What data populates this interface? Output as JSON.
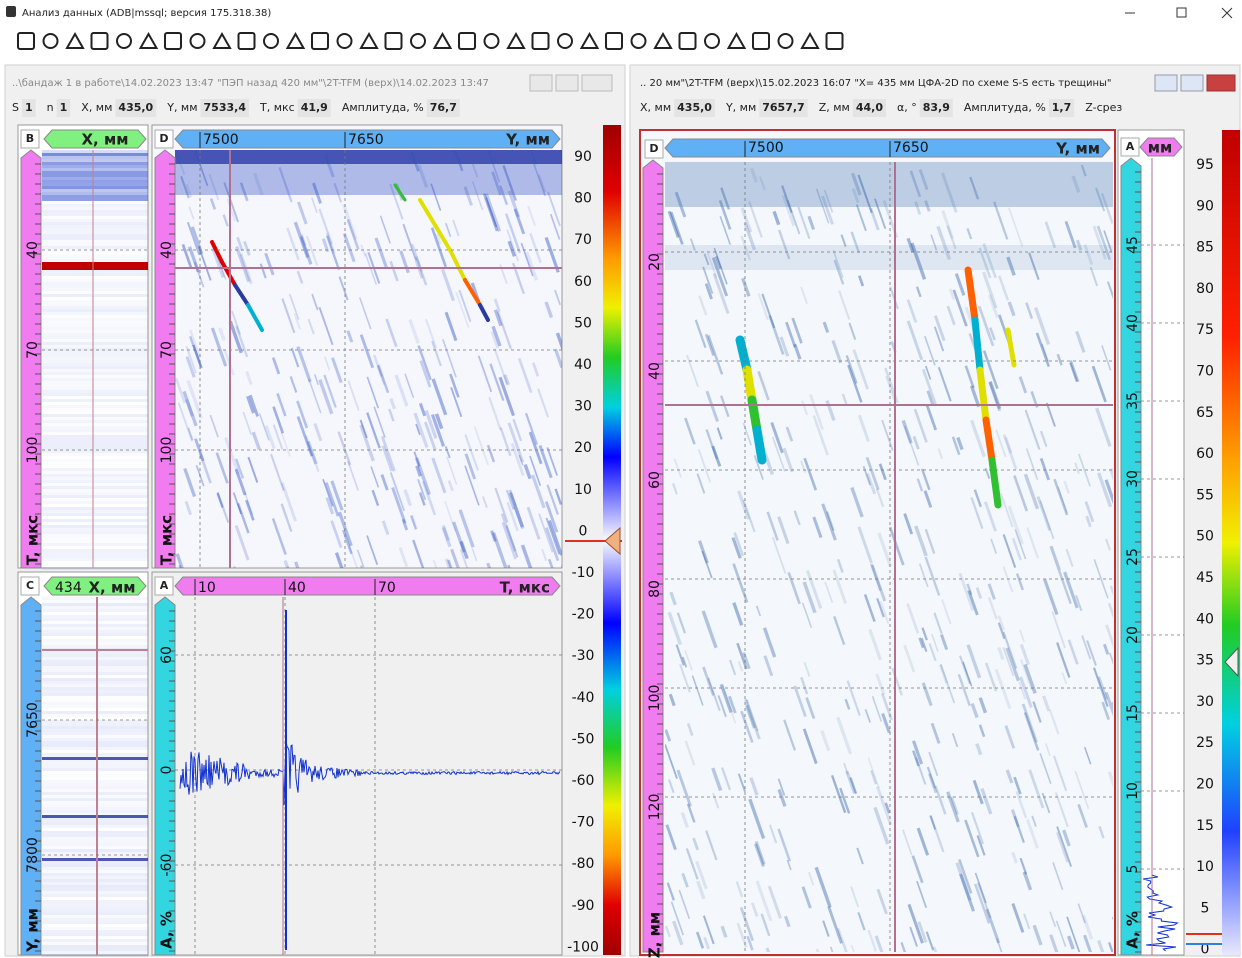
{
  "window": {
    "title": "Анализ данных (ADB|mssql; версия 175.318.38)"
  },
  "left_panel": {
    "title": "..\\бандаж 1 в работе\\14.02.2023 13:47 \"ПЭП назад 420 мм\"\\2T-TFM (верх)\\14.02.2023 13:47",
    "status": [
      {
        "label": "S",
        "value": "1"
      },
      {
        "label": "n",
        "value": "1"
      },
      {
        "label": "X, мм",
        "value": "435,0"
      },
      {
        "label": "Y, мм",
        "value": "7533,4"
      },
      {
        "label": "T, мкс",
        "value": "41,9"
      },
      {
        "label": "Амплитуда, %",
        "value": "76,7"
      }
    ],
    "b_view": {
      "letter": "B",
      "header": "X, мм",
      "axis_label": "T, мкс",
      "ticks": [
        "40",
        "70",
        "100"
      ]
    },
    "d_view": {
      "letter": "D",
      "top_ticks": [
        "7500",
        "7650"
      ],
      "top_label": "Y, мм",
      "axis_label": "T, мкс",
      "ticks": [
        "40",
        "70",
        "100"
      ]
    },
    "c_view": {
      "letter": "C",
      "header_value": "434",
      "header": "X, мм",
      "axis_label": "Y, мм",
      "ticks": [
        "7650",
        "7800"
      ]
    },
    "a_view": {
      "letter": "A",
      "top_ticks": [
        "10",
        "40",
        "70"
      ],
      "top_label": "T, мкс",
      "axis_label": "A, %",
      "ticks": [
        "60",
        "0",
        "-60"
      ]
    },
    "scale_ticks": [
      "90",
      "80",
      "70",
      "60",
      "50",
      "40",
      "30",
      "20",
      "10",
      "0",
      "-10",
      "-20",
      "-30",
      "-40",
      "-50",
      "-60",
      "-70",
      "-80",
      "-90",
      "-100"
    ]
  },
  "right_panel": {
    "title": ".. 20 мм\"\\2T-TFM (верх)\\15.02.2023 16:07 \"X= 435 мм ЦФА-2D по схеме S-S есть трещины\"",
    "status": [
      {
        "label": "X, мм",
        "value": "435,0"
      },
      {
        "label": "Y, мм",
        "value": "7657,7"
      },
      {
        "label": "Z, мм",
        "value": "44,0"
      },
      {
        "label": "α, °",
        "value": "83,9"
      },
      {
        "label": "Амплитуда, %",
        "value": "1,7"
      },
      {
        "label": "Z-срез"
      }
    ],
    "d_view": {
      "letter": "D",
      "top_ticks": [
        "7500",
        "7650"
      ],
      "top_label": "Y, мм",
      "axis_label": "Z, мм",
      "ticks": [
        "20",
        "40",
        "60",
        "80",
        "100",
        "120"
      ]
    },
    "a_view": {
      "letter": "A",
      "header": "мм",
      "axis_label": "A, %",
      "ticks": [
        "45",
        "40",
        "35",
        "30",
        "25",
        "20",
        "15",
        "10",
        "5"
      ]
    },
    "scale_ticks": [
      "95",
      "90",
      "85",
      "80",
      "75",
      "70",
      "65",
      "60",
      "55",
      "50",
      "45",
      "40",
      "35",
      "30",
      "25",
      "20",
      "15",
      "10",
      "5",
      "0"
    ]
  }
}
